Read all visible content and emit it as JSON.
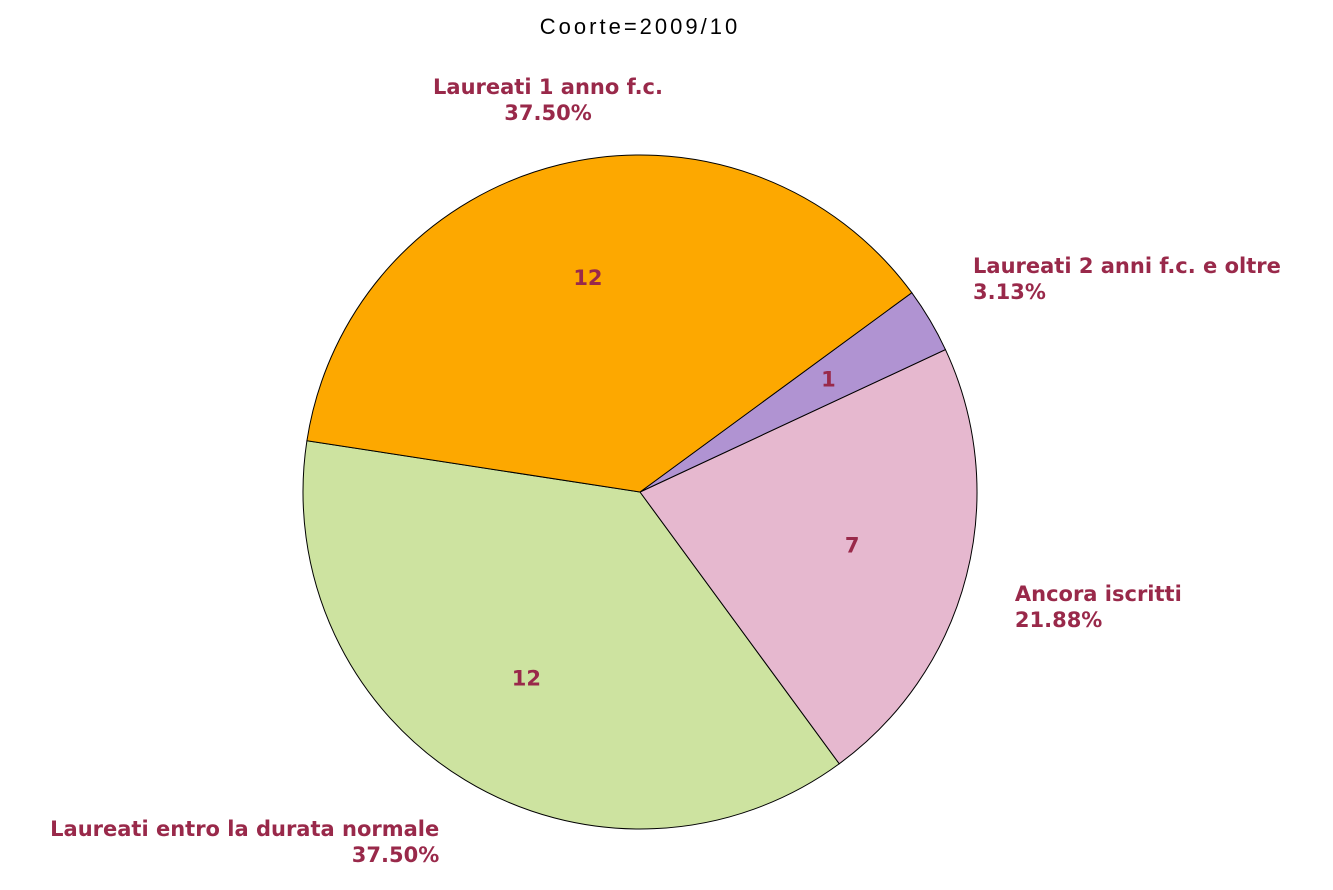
{
  "chart_data": {
    "type": "pie",
    "title": "Coorte=2009/10",
    "categories": [
      "Laureati entro la durata normale",
      "Ancora iscritti",
      "Laureati 2 anni f.c. e oltre",
      "Laureati 1 anno f.c."
    ],
    "values": [
      12,
      7,
      1,
      12
    ],
    "percent_labels": [
      "37.50%",
      "21.88%",
      "3.13%",
      "37.50%"
    ],
    "colors": [
      "#cde3a0",
      "#e6b8cf",
      "#b093d2",
      "#fda800"
    ],
    "label_color": "#99294a"
  }
}
